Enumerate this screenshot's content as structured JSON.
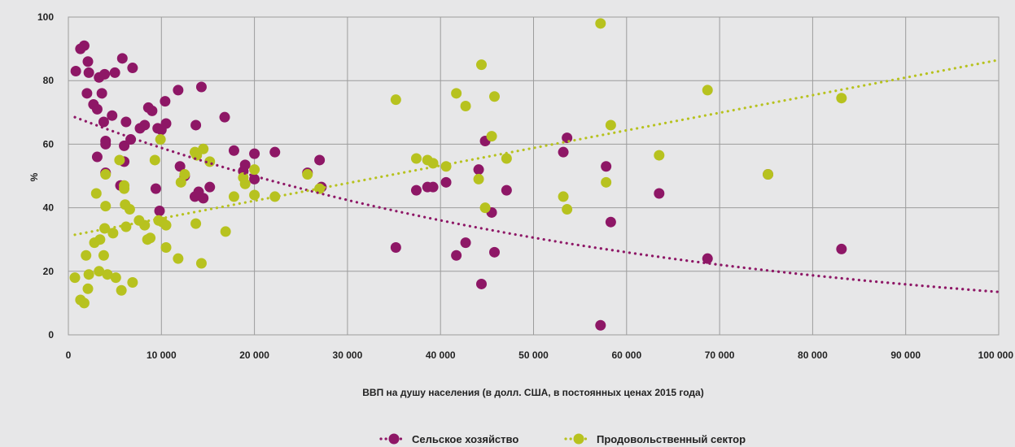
{
  "chart_data": {
    "type": "scatter",
    "xlabel": "ВВП на душу населения (в долл. США, в постоянных ценах 2015 года)",
    "ylabel": "%",
    "xlim": [
      0,
      100000
    ],
    "ylim": [
      0,
      100
    ],
    "xticks": [
      {
        "value": 0,
        "label": "0"
      },
      {
        "value": 10000,
        "label": "10 000"
      },
      {
        "value": 20000,
        "label": "20 000"
      },
      {
        "value": 30000,
        "label": "30 000"
      },
      {
        "value": 40000,
        "label": "40 000"
      },
      {
        "value": 50000,
        "label": "50 000"
      },
      {
        "value": 60000,
        "label": "60 000"
      },
      {
        "value": 70000,
        "label": "70 000"
      },
      {
        "value": 80000,
        "label": "80 000"
      },
      {
        "value": 90000,
        "label": "90 000"
      },
      {
        "value": 100000,
        "label": "100 000"
      }
    ],
    "yticks": [
      {
        "value": 0,
        "label": "0"
      },
      {
        "value": 20,
        "label": "20"
      },
      {
        "value": 40,
        "label": "40"
      },
      {
        "value": 60,
        "label": "60"
      },
      {
        "value": 80,
        "label": "80"
      },
      {
        "value": 100,
        "label": "100"
      }
    ],
    "grid": true,
    "legend_position": "bottom-center",
    "series": [
      {
        "name": "Сельское хозяйство",
        "color": "#8e1766",
        "trend": {
          "type": "exponential",
          "from": [
            700,
            68.5
          ],
          "to": [
            100000,
            13.5
          ]
        },
        "points": [
          [
            800,
            83
          ],
          [
            1300,
            90
          ],
          [
            1700,
            91
          ],
          [
            2000,
            76
          ],
          [
            2100,
            86
          ],
          [
            2200,
            82.5
          ],
          [
            2700,
            72.5
          ],
          [
            3100,
            71
          ],
          [
            3100,
            56
          ],
          [
            3300,
            81
          ],
          [
            3600,
            76
          ],
          [
            3800,
            67
          ],
          [
            3900,
            82
          ],
          [
            4000,
            61
          ],
          [
            4000,
            60
          ],
          [
            4000,
            51
          ],
          [
            4700,
            69
          ],
          [
            5000,
            82.5
          ],
          [
            5600,
            47
          ],
          [
            5800,
            87
          ],
          [
            6000,
            59.5
          ],
          [
            6000,
            54.5
          ],
          [
            6200,
            67
          ],
          [
            6700,
            61.5
          ],
          [
            6900,
            84
          ],
          [
            7700,
            65
          ],
          [
            8200,
            66
          ],
          [
            8600,
            71.5
          ],
          [
            9000,
            70.5
          ],
          [
            9400,
            46
          ],
          [
            9600,
            65
          ],
          [
            9800,
            39
          ],
          [
            10000,
            64.5
          ],
          [
            10400,
            73.5
          ],
          [
            10500,
            66.5
          ],
          [
            11800,
            77
          ],
          [
            12000,
            53
          ],
          [
            12500,
            50
          ],
          [
            13600,
            43.5
          ],
          [
            13700,
            66
          ],
          [
            14000,
            45
          ],
          [
            14300,
            78
          ],
          [
            14500,
            43
          ],
          [
            15200,
            46.5
          ],
          [
            16800,
            68.5
          ],
          [
            17800,
            58
          ],
          [
            18800,
            51.5
          ],
          [
            19000,
            53.5
          ],
          [
            20000,
            57
          ],
          [
            20000,
            49
          ],
          [
            22200,
            57.5
          ],
          [
            25700,
            51
          ],
          [
            27000,
            55
          ],
          [
            27200,
            46.5
          ],
          [
            35200,
            27.5
          ],
          [
            37400,
            45.5
          ],
          [
            38600,
            46.5
          ],
          [
            39200,
            46.5
          ],
          [
            40600,
            48
          ],
          [
            41700,
            25
          ],
          [
            42700,
            29
          ],
          [
            44100,
            52
          ],
          [
            44400,
            16
          ],
          [
            44800,
            61
          ],
          [
            45500,
            38.5
          ],
          [
            45800,
            26
          ],
          [
            47100,
            45.5
          ],
          [
            53200,
            57.5
          ],
          [
            53600,
            62
          ],
          [
            57200,
            3
          ],
          [
            57800,
            53
          ],
          [
            58300,
            35.5
          ],
          [
            63500,
            44.5
          ],
          [
            68700,
            24
          ],
          [
            75200,
            50.5
          ],
          [
            83100,
            27
          ]
        ]
      },
      {
        "name": "Продовольственный сектор",
        "color": "#b7c21f",
        "trend": {
          "type": "linear",
          "from": [
            700,
            31.5
          ],
          "to": [
            100000,
            86.5
          ]
        },
        "points": [
          [
            700,
            18
          ],
          [
            1300,
            11
          ],
          [
            1700,
            10
          ],
          [
            1900,
            25
          ],
          [
            2100,
            14.5
          ],
          [
            2200,
            19
          ],
          [
            2800,
            29
          ],
          [
            3000,
            44.5
          ],
          [
            3300,
            20
          ],
          [
            3400,
            30
          ],
          [
            3800,
            25
          ],
          [
            3900,
            33.5
          ],
          [
            4000,
            40.5
          ],
          [
            4000,
            50.5
          ],
          [
            4200,
            19
          ],
          [
            4800,
            32
          ],
          [
            5100,
            18
          ],
          [
            5500,
            55
          ],
          [
            5700,
            14
          ],
          [
            6000,
            47
          ],
          [
            6000,
            46
          ],
          [
            6100,
            41
          ],
          [
            6200,
            34
          ],
          [
            6600,
            39.5
          ],
          [
            6900,
            16.5
          ],
          [
            7600,
            36
          ],
          [
            8200,
            34.5
          ],
          [
            8500,
            30
          ],
          [
            8800,
            30.5
          ],
          [
            9300,
            55
          ],
          [
            9700,
            36
          ],
          [
            9900,
            61.5
          ],
          [
            10100,
            35.5
          ],
          [
            10500,
            27.5
          ],
          [
            10500,
            34.5
          ],
          [
            11800,
            24
          ],
          [
            12100,
            48
          ],
          [
            12500,
            50.5
          ],
          [
            13600,
            57.5
          ],
          [
            13700,
            35
          ],
          [
            13800,
            56.5
          ],
          [
            14300,
            22.5
          ],
          [
            14500,
            58.5
          ],
          [
            15200,
            54.5
          ],
          [
            16900,
            32.5
          ],
          [
            17800,
            43.5
          ],
          [
            18800,
            49.5
          ],
          [
            19000,
            47.5
          ],
          [
            20000,
            44
          ],
          [
            20000,
            52
          ],
          [
            22200,
            43.5
          ],
          [
            25700,
            50.5
          ],
          [
            27000,
            46
          ],
          [
            35200,
            74
          ],
          [
            37400,
            55.5
          ],
          [
            38600,
            55
          ],
          [
            39200,
            54
          ],
          [
            40600,
            53
          ],
          [
            41700,
            76
          ],
          [
            42700,
            72
          ],
          [
            44100,
            49
          ],
          [
            44400,
            85
          ],
          [
            44800,
            40
          ],
          [
            45500,
            62.5
          ],
          [
            45800,
            75
          ],
          [
            47100,
            55.5
          ],
          [
            53200,
            43.5
          ],
          [
            53600,
            39.5
          ],
          [
            57200,
            98
          ],
          [
            57800,
            48
          ],
          [
            58300,
            66
          ],
          [
            63500,
            56.5
          ],
          [
            68700,
            77
          ],
          [
            75200,
            50.5
          ],
          [
            83100,
            74.5
          ]
        ]
      }
    ]
  }
}
